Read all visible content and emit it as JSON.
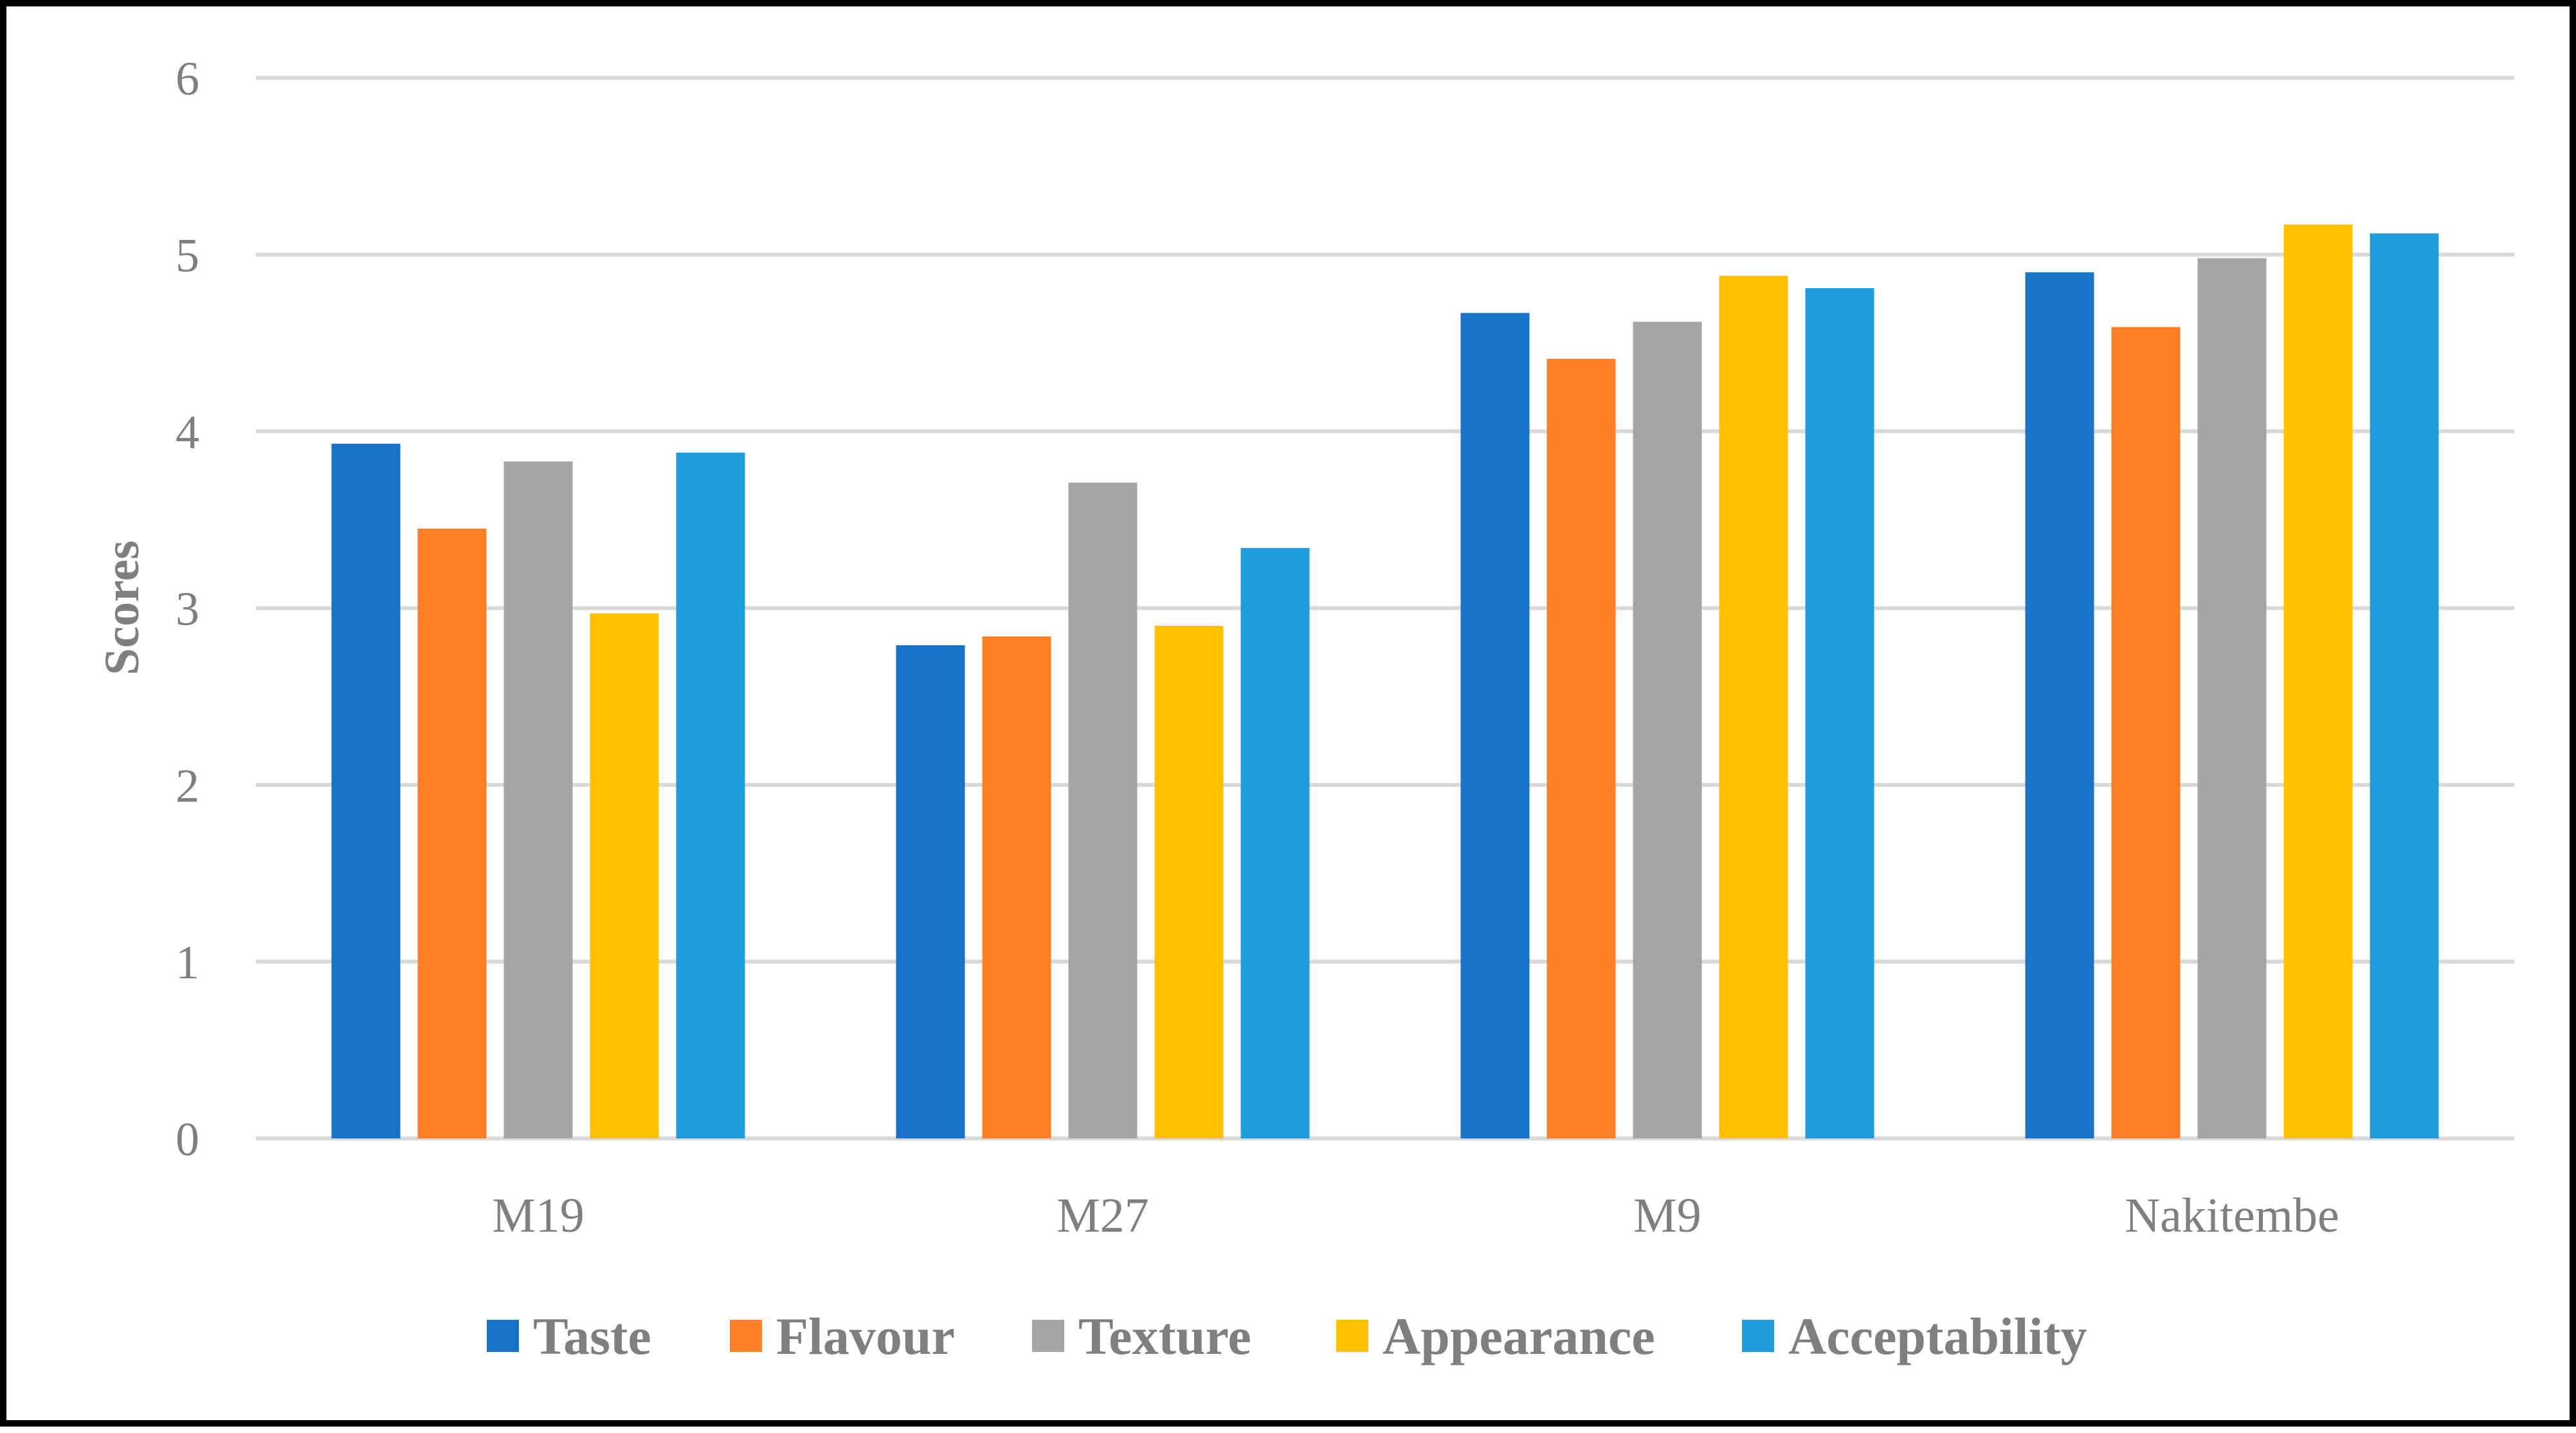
{
  "chart_data": {
    "type": "bar",
    "title": "",
    "xlabel": "",
    "ylabel": "Scores",
    "ylim": [
      0,
      6
    ],
    "yticks": [
      "0",
      "1",
      "2",
      "3",
      "4",
      "5",
      "6"
    ],
    "grid": true,
    "legend_position": "bottom",
    "categories": [
      "M19",
      "M27",
      "M9",
      "Nakitembe"
    ],
    "series": [
      {
        "name": "Taste",
        "color": "#1872C8",
        "values": [
          3.93,
          2.79,
          4.67,
          4.9
        ]
      },
      {
        "name": "Flavour",
        "color": "#FD7F28",
        "values": [
          3.45,
          2.84,
          4.41,
          4.59
        ]
      },
      {
        "name": "Texture",
        "color": "#A5A5A5",
        "values": [
          3.83,
          3.71,
          4.62,
          4.98
        ]
      },
      {
        "name": "Appearance",
        "color": "#FFC000",
        "values": [
          2.97,
          2.9,
          4.88,
          5.17
        ]
      },
      {
        "name": "Acceptability",
        "color": "#1F9CD9",
        "values": [
          3.88,
          3.34,
          4.81,
          5.12
        ]
      }
    ]
  }
}
